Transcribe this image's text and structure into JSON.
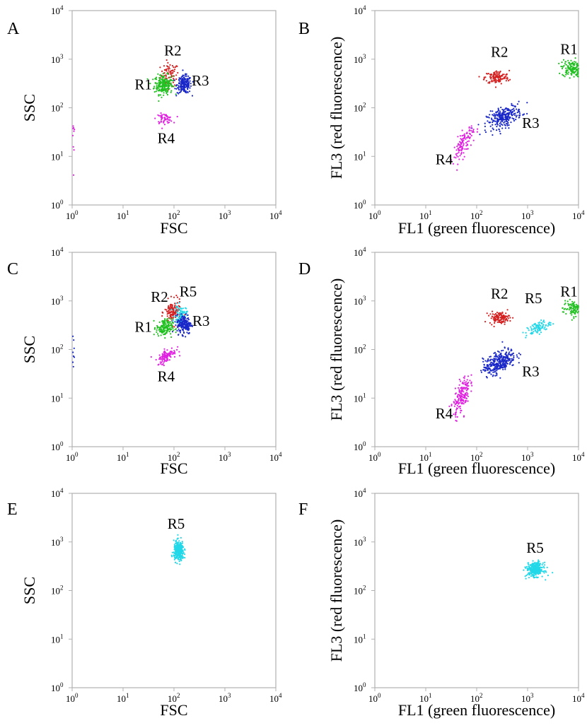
{
  "figure": {
    "panels": [
      "A",
      "B",
      "C",
      "D",
      "E",
      "F"
    ]
  },
  "colors": {
    "R1": "#22c022",
    "R2": "#d42020",
    "R3": "#1a28c8",
    "R4": "#e020e0",
    "R5": "#22d8e8",
    "axis": "#b0b0b0"
  },
  "chart_data": [
    {
      "panel": "A",
      "type": "scatter",
      "xlabel": "FSC",
      "ylabel": "SSC",
      "xscale": "log",
      "yscale": "log",
      "xlim": [
        1,
        10000
      ],
      "ylim": [
        1,
        10000
      ],
      "tick_values": [
        1,
        10,
        100,
        1000,
        10000
      ],
      "tick_labels": [
        {
          "b": "10",
          "e": "0"
        },
        {
          "b": "10",
          "e": "1"
        },
        {
          "b": "10",
          "e": "2"
        },
        {
          "b": "10",
          "e": "3"
        },
        {
          "b": "10",
          "e": "4"
        }
      ],
      "populations": [
        {
          "name": "R2",
          "cx": 82,
          "cy": 480,
          "sx": 0.09,
          "sy": 0.12,
          "n": 80
        },
        {
          "name": "R1",
          "cx": 62,
          "cy": 300,
          "sx": 0.09,
          "sy": 0.1,
          "n": 220
        },
        {
          "name": "R3",
          "cx": 160,
          "cy": 300,
          "sx": 0.07,
          "sy": 0.09,
          "n": 200
        },
        {
          "name": "R4",
          "cx": 65,
          "cy": 60,
          "sx": 0.08,
          "sy": 0.05,
          "n": 60
        },
        {
          "name": "edge",
          "color": "R4",
          "cx": 1.05,
          "cy": 25,
          "sx": 0.01,
          "sy": 0.35,
          "n": 10
        }
      ],
      "annotations": [
        {
          "text": "R1",
          "x": 25,
          "y": 280
        },
        {
          "text": "R2",
          "x": 95,
          "y": 1400
        },
        {
          "text": "R3",
          "x": 330,
          "y": 340
        },
        {
          "text": "R4",
          "x": 70,
          "y": 22
        }
      ]
    },
    {
      "panel": "B",
      "type": "scatter",
      "xlabel": "FL1 (green fluorescence)",
      "ylabel": "FL3 (red fluorescence)",
      "xscale": "log",
      "yscale": "log",
      "xlim": [
        1,
        10000
      ],
      "ylim": [
        1,
        10000
      ],
      "tick_values": [
        1,
        10,
        100,
        1000,
        10000
      ],
      "tick_labels": [
        {
          "b": "10",
          "e": "0"
        },
        {
          "b": "10",
          "e": "1"
        },
        {
          "b": "10",
          "e": "2"
        },
        {
          "b": "10",
          "e": "3"
        },
        {
          "b": "10",
          "e": "4"
        }
      ],
      "populations": [
        {
          "name": "R2",
          "cx": 250,
          "cy": 420,
          "sx": 0.12,
          "sy": 0.07,
          "n": 130
        },
        {
          "name": "R1",
          "cx": 7500,
          "cy": 650,
          "sx": 0.1,
          "sy": 0.09,
          "n": 150
        },
        {
          "name": "R3",
          "cx": 350,
          "cy": 65,
          "sx": 0.17,
          "sy": 0.12,
          "n": 260,
          "rho": 0.55
        },
        {
          "name": "R4",
          "cx": 55,
          "cy": 18,
          "sx": 0.1,
          "sy": 0.18,
          "n": 110,
          "rho": 0.7
        }
      ],
      "annotations": [
        {
          "text": "R1",
          "x": 6500,
          "y": 1500
        },
        {
          "text": "R2",
          "x": 280,
          "y": 1300
        },
        {
          "text": "R3",
          "x": 1150,
          "y": 45
        },
        {
          "text": "R4",
          "x": 23,
          "y": 8
        }
      ]
    },
    {
      "panel": "C",
      "type": "scatter",
      "xlabel": "FSC",
      "ylabel": "SSC",
      "xscale": "log",
      "yscale": "log",
      "xlim": [
        1,
        10000
      ],
      "ylim": [
        1,
        10000
      ],
      "tick_values": [
        1,
        10,
        100,
        1000,
        10000
      ],
      "tick_labels": [
        {
          "b": "10",
          "e": "0"
        },
        {
          "b": "10",
          "e": "1"
        },
        {
          "b": "10",
          "e": "2"
        },
        {
          "b": "10",
          "e": "3"
        },
        {
          "b": "10",
          "e": "4"
        }
      ],
      "populations": [
        {
          "name": "R2",
          "cx": 95,
          "cy": 580,
          "sx": 0.08,
          "sy": 0.12,
          "n": 130
        },
        {
          "name": "R5",
          "cx": 135,
          "cy": 500,
          "sx": 0.06,
          "sy": 0.1,
          "n": 90
        },
        {
          "name": "R1",
          "cx": 65,
          "cy": 280,
          "sx": 0.08,
          "sy": 0.09,
          "n": 160
        },
        {
          "name": "R3",
          "cx": 160,
          "cy": 330,
          "sx": 0.07,
          "sy": 0.1,
          "n": 180
        },
        {
          "name": "R4",
          "cx": 72,
          "cy": 75,
          "sx": 0.09,
          "sy": 0.08,
          "n": 110,
          "rho": 0.6
        },
        {
          "name": "edge",
          "color": "R3",
          "cx": 1.06,
          "cy": 80,
          "sx": 0.01,
          "sy": 0.2,
          "n": 8
        }
      ],
      "annotations": [
        {
          "text": "R1",
          "x": 25,
          "y": 270
        },
        {
          "text": "R2",
          "x": 52,
          "y": 1120
        },
        {
          "text": "R5",
          "x": 190,
          "y": 1450
        },
        {
          "text": "R3",
          "x": 340,
          "y": 360
        },
        {
          "text": "R4",
          "x": 70,
          "y": 26
        }
      ]
    },
    {
      "panel": "D",
      "type": "scatter",
      "xlabel": "FL1 (green fluorescence)",
      "ylabel": "FL3 (red fluorescence)",
      "xscale": "log",
      "yscale": "log",
      "xlim": [
        1,
        10000
      ],
      "ylim": [
        1,
        10000
      ],
      "tick_values": [
        1,
        10,
        100,
        1000,
        10000
      ],
      "tick_labels": [
        {
          "b": "10",
          "e": "0"
        },
        {
          "b": "10",
          "e": "1"
        },
        {
          "b": "10",
          "e": "2"
        },
        {
          "b": "10",
          "e": "3"
        },
        {
          "b": "10",
          "e": "4"
        }
      ],
      "populations": [
        {
          "name": "R2",
          "cx": 280,
          "cy": 450,
          "sx": 0.1,
          "sy": 0.06,
          "n": 120
        },
        {
          "name": "R5",
          "cx": 1600,
          "cy": 280,
          "sx": 0.12,
          "sy": 0.08,
          "n": 90,
          "rho": 0.6
        },
        {
          "name": "R1",
          "cx": 7800,
          "cy": 700,
          "sx": 0.1,
          "sy": 0.08,
          "n": 110
        },
        {
          "name": "R3",
          "cx": 280,
          "cy": 55,
          "sx": 0.16,
          "sy": 0.13,
          "n": 320,
          "rho": 0.55
        },
        {
          "name": "R4",
          "cx": 50,
          "cy": 11,
          "sx": 0.08,
          "sy": 0.2,
          "n": 170,
          "rho": 0.6
        }
      ],
      "annotations": [
        {
          "text": "R1",
          "x": 6500,
          "y": 1450
        },
        {
          "text": "R2",
          "x": 280,
          "y": 1300
        },
        {
          "text": "R5",
          "x": 1300,
          "y": 1050
        },
        {
          "text": "R3",
          "x": 1150,
          "y": 33
        },
        {
          "text": "R4",
          "x": 23,
          "y": 4.5
        }
      ]
    },
    {
      "panel": "E",
      "type": "scatter",
      "xlabel": "FSC",
      "ylabel": "SSC",
      "xscale": "log",
      "yscale": "log",
      "xlim": [
        1,
        10000
      ],
      "ylim": [
        1,
        10000
      ],
      "tick_values": [
        1,
        10,
        100,
        1000,
        10000
      ],
      "tick_labels": [
        {
          "b": "10",
          "e": "0"
        },
        {
          "b": "10",
          "e": "1"
        },
        {
          "b": "10",
          "e": "2"
        },
        {
          "b": "10",
          "e": "3"
        },
        {
          "b": "10",
          "e": "4"
        }
      ],
      "populations": [
        {
          "name": "R5",
          "cx": 125,
          "cy": 650,
          "sx": 0.05,
          "sy": 0.1,
          "n": 300
        }
      ],
      "annotations": [
        {
          "text": "R5",
          "x": 110,
          "y": 2200
        }
      ]
    },
    {
      "panel": "F",
      "type": "scatter",
      "xlabel": "FL1 (green fluorescence)",
      "ylabel": "FL3 (red fluorescence)",
      "xscale": "log",
      "yscale": "log",
      "xlim": [
        1,
        10000
      ],
      "ylim": [
        1,
        10000
      ],
      "tick_values": [
        1,
        10,
        100,
        1000,
        10000
      ],
      "tick_labels": [
        {
          "b": "10",
          "e": "0"
        },
        {
          "b": "10",
          "e": "1"
        },
        {
          "b": "10",
          "e": "2"
        },
        {
          "b": "10",
          "e": "3"
        },
        {
          "b": "10",
          "e": "4"
        }
      ],
      "populations": [
        {
          "name": "R5",
          "cx": 1400,
          "cy": 270,
          "sx": 0.08,
          "sy": 0.07,
          "n": 300
        }
      ],
      "annotations": [
        {
          "text": "R5",
          "x": 1400,
          "y": 700
        }
      ]
    }
  ]
}
